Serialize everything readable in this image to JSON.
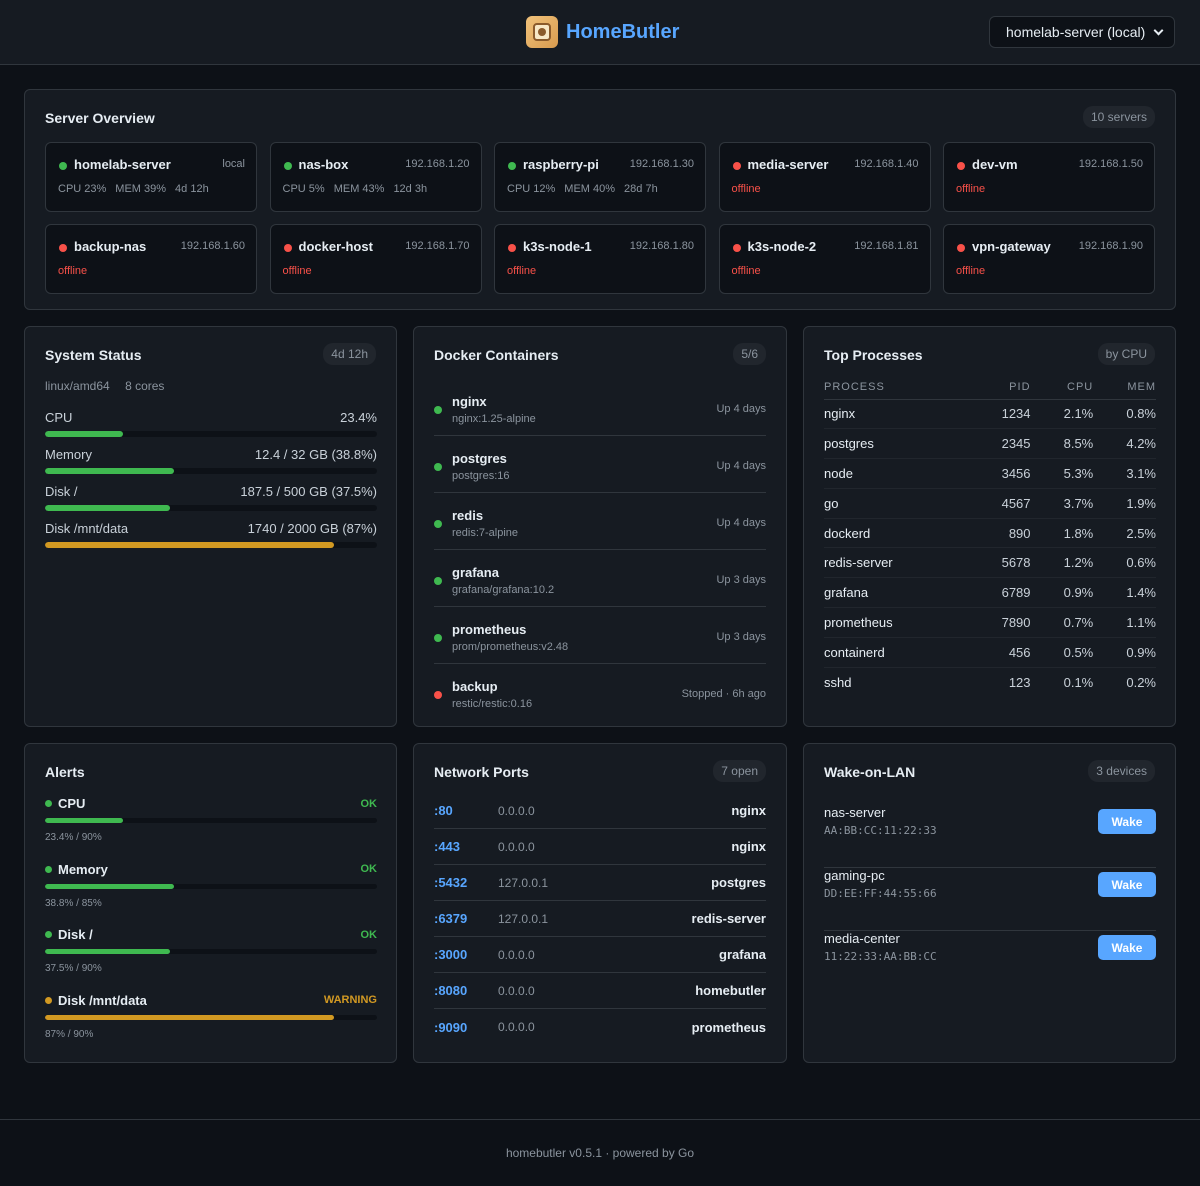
{
  "header": {
    "brand": "HomeButler",
    "server_select": "homelab-server (local)"
  },
  "overview": {
    "title": "Server Overview",
    "badge": "10 servers",
    "servers": [
      {
        "name": "homelab-server",
        "ip": "local",
        "status": "online",
        "cpu": "CPU 23%",
        "mem": "MEM 39%",
        "uptime": "4d 12h"
      },
      {
        "name": "nas-box",
        "ip": "192.168.1.20",
        "status": "online",
        "cpu": "CPU 5%",
        "mem": "MEM 43%",
        "uptime": "12d 3h"
      },
      {
        "name": "raspberry-pi",
        "ip": "192.168.1.30",
        "status": "online",
        "cpu": "CPU 12%",
        "mem": "MEM 40%",
        "uptime": "28d 7h"
      },
      {
        "name": "media-server",
        "ip": "192.168.1.40",
        "status": "offline",
        "off_label": "offline"
      },
      {
        "name": "dev-vm",
        "ip": "192.168.1.50",
        "status": "offline",
        "off_label": "offline"
      },
      {
        "name": "backup-nas",
        "ip": "192.168.1.60",
        "status": "offline",
        "off_label": "offline"
      },
      {
        "name": "docker-host",
        "ip": "192.168.1.70",
        "status": "offline",
        "off_label": "offline"
      },
      {
        "name": "k3s-node-1",
        "ip": "192.168.1.80",
        "status": "offline",
        "off_label": "offline"
      },
      {
        "name": "k3s-node-2",
        "ip": "192.168.1.81",
        "status": "offline",
        "off_label": "offline"
      },
      {
        "name": "vpn-gateway",
        "ip": "192.168.1.90",
        "status": "offline",
        "off_label": "offline"
      }
    ]
  },
  "system": {
    "title": "System Status",
    "badge": "4d 12h",
    "platform": "linux/amd64",
    "cores": "8 cores",
    "meters": [
      {
        "label": "CPU",
        "value": "23.4%",
        "percent": 23.4,
        "color": "#3fb950"
      },
      {
        "label": "Memory",
        "value": "12.4 / 32 GB (38.8%)",
        "percent": 38.8,
        "color": "#3fb950"
      },
      {
        "label": "Disk /",
        "value": "187.5 / 500 GB (37.5%)",
        "percent": 37.5,
        "color": "#3fb950"
      },
      {
        "label": "Disk /mnt/data",
        "value": "1740 / 2000 GB (87%)",
        "percent": 87,
        "color": "#d29922"
      }
    ]
  },
  "docker": {
    "title": "Docker Containers",
    "badge": "5/6",
    "containers": [
      {
        "name": "nginx",
        "image": "nginx:1.25-alpine",
        "status": "Up 4 days",
        "running": true
      },
      {
        "name": "postgres",
        "image": "postgres:16",
        "status": "Up 4 days",
        "running": true
      },
      {
        "name": "redis",
        "image": "redis:7-alpine",
        "status": "Up 4 days",
        "running": true
      },
      {
        "name": "grafana",
        "image": "grafana/grafana:10.2",
        "status": "Up 3 days",
        "running": true
      },
      {
        "name": "prometheus",
        "image": "prom/prometheus:v2.48",
        "status": "Up 3 days",
        "running": true
      },
      {
        "name": "backup",
        "image": "restic/restic:0.16",
        "status": "Stopped · 6h ago",
        "running": false
      }
    ]
  },
  "processes": {
    "title": "Top Processes",
    "badge": "by CPU",
    "columns": [
      "PROCESS",
      "PID",
      "CPU",
      "MEM"
    ],
    "rows": [
      [
        "nginx",
        "1234",
        "2.1%",
        "0.8%"
      ],
      [
        "postgres",
        "2345",
        "8.5%",
        "4.2%"
      ],
      [
        "node",
        "3456",
        "5.3%",
        "3.1%"
      ],
      [
        "go",
        "4567",
        "3.7%",
        "1.9%"
      ],
      [
        "dockerd",
        "890",
        "1.8%",
        "2.5%"
      ],
      [
        "redis-server",
        "5678",
        "1.2%",
        "0.6%"
      ],
      [
        "grafana",
        "6789",
        "0.9%",
        "1.4%"
      ],
      [
        "prometheus",
        "7890",
        "0.7%",
        "1.1%"
      ],
      [
        "containerd",
        "456",
        "0.5%",
        "0.9%"
      ],
      [
        "sshd",
        "123",
        "0.1%",
        "0.2%"
      ]
    ]
  },
  "alerts": {
    "title": "Alerts",
    "items": [
      {
        "label": "CPU",
        "state": "OK",
        "detail": "23.4% / 90%",
        "percent": 23.4,
        "level": "ok"
      },
      {
        "label": "Memory",
        "state": "OK",
        "detail": "38.8% / 85%",
        "percent": 38.8,
        "level": "ok"
      },
      {
        "label": "Disk /",
        "state": "OK",
        "detail": "37.5% / 90%",
        "percent": 37.5,
        "level": "ok"
      },
      {
        "label": "Disk /mnt/data",
        "state": "WARNING",
        "detail": "87% / 90%",
        "percent": 87,
        "level": "warn"
      }
    ]
  },
  "ports": {
    "title": "Network Ports",
    "badge": "7 open",
    "items": [
      {
        "port": ":80",
        "addr": "0.0.0.0",
        "proc": "nginx"
      },
      {
        "port": ":443",
        "addr": "0.0.0.0",
        "proc": "nginx"
      },
      {
        "port": ":5432",
        "addr": "127.0.0.1",
        "proc": "postgres"
      },
      {
        "port": ":6379",
        "addr": "127.0.0.1",
        "proc": "redis-server"
      },
      {
        "port": ":3000",
        "addr": "0.0.0.0",
        "proc": "grafana"
      },
      {
        "port": ":8080",
        "addr": "0.0.0.0",
        "proc": "homebutler"
      },
      {
        "port": ":9090",
        "addr": "0.0.0.0",
        "proc": "prometheus"
      }
    ]
  },
  "wol": {
    "title": "Wake-on-LAN",
    "badge": "3 devices",
    "button_label": "Wake",
    "devices": [
      {
        "name": "nas-server",
        "mac": "AA:BB:CC:11:22:33"
      },
      {
        "name": "gaming-pc",
        "mac": "DD:EE:FF:44:55:66"
      },
      {
        "name": "media-center",
        "mac": "11:22:33:AA:BB:CC"
      }
    ]
  },
  "footer": {
    "text": "homebutler v0.5.1 · powered by Go"
  },
  "colors": {
    "background": "#0d1117",
    "card": "#161b22",
    "accent": "#58a6ff",
    "ok": "#3fb950",
    "warning": "#d29922",
    "error": "#f85149"
  }
}
